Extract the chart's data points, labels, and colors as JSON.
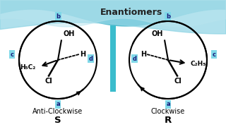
{
  "title": "Enantiomers",
  "title_fontsize": 9,
  "left_label1": "Anti-Clockwise",
  "left_label2": "S",
  "right_label1": "Clockwise",
  "right_label2": "R",
  "label_fontsize": 7,
  "mirror_color": "#3bbccc",
  "teal_box_color": "#80d8e8",
  "bg_blue": "#7ecee0",
  "bg_white": "#ffffff"
}
